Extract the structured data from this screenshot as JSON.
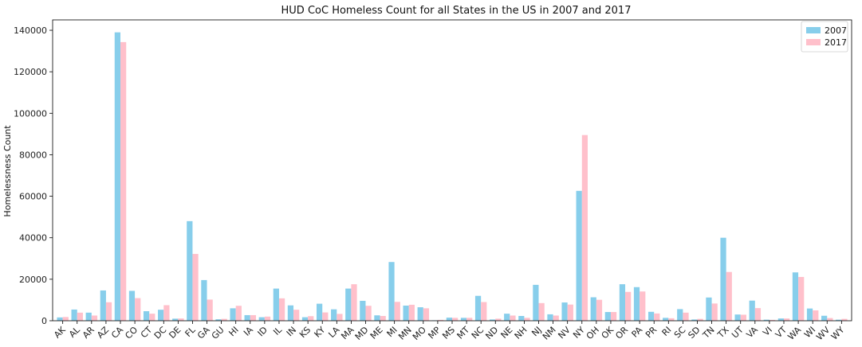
{
  "chart_data": {
    "type": "bar",
    "title": "HUD CoC Homeless Count for all States in the US in 2007 and 2017",
    "xlabel": "",
    "ylabel": "Homelessness Count",
    "ylim": [
      0,
      145000
    ],
    "yticks": [
      0,
      20000,
      40000,
      60000,
      80000,
      100000,
      120000,
      140000
    ],
    "grid": false,
    "legend_position": "top-right",
    "categories": [
      "AK",
      "AL",
      "AR",
      "AZ",
      "CA",
      "CO",
      "CT",
      "DC",
      "DE",
      "FL",
      "GA",
      "GU",
      "HI",
      "IA",
      "ID",
      "IL",
      "IN",
      "KS",
      "KY",
      "LA",
      "MA",
      "MD",
      "ME",
      "MI",
      "MN",
      "MO",
      "MP",
      "MS",
      "MT",
      "NC",
      "ND",
      "NE",
      "NH",
      "NJ",
      "NM",
      "NV",
      "NY",
      "OH",
      "OK",
      "OR",
      "PA",
      "PR",
      "RI",
      "SC",
      "SD",
      "TN",
      "TX",
      "UT",
      "VA",
      "VI",
      "VT",
      "WA",
      "WI",
      "WV",
      "WY"
    ],
    "series": [
      {
        "name": "2007",
        "color": "#87ceeb",
        "values": [
          1600,
          5400,
          3900,
          14600,
          139000,
          14400,
          4600,
          5300,
          1000,
          48000,
          19600,
          700,
          6000,
          2700,
          1700,
          15500,
          7400,
          1700,
          8200,
          5500,
          15500,
          9600,
          2600,
          28300,
          7300,
          6500,
          200,
          1500,
          1400,
          12000,
          600,
          3400,
          2300,
          17300,
          3100,
          8800,
          62600,
          11300,
          4200,
          17600,
          16200,
          4300,
          1400,
          5600,
          600,
          11200,
          40000,
          3000,
          9700,
          500,
          1100,
          23300,
          5900,
          2400,
          500
        ]
      },
      {
        "name": "2017",
        "color": "#ffc0cb",
        "values": [
          1800,
          3900,
          2500,
          8900,
          134300,
          10900,
          3400,
          7500,
          1100,
          32200,
          10200,
          900,
          7200,
          2700,
          2000,
          10800,
          5300,
          2200,
          4000,
          3300,
          17600,
          7200,
          2300,
          9100,
          7700,
          6000,
          400,
          1400,
          1400,
          9000,
          1000,
          2500,
          1400,
          8500,
          2500,
          7800,
          89500,
          10100,
          4200,
          13900,
          14100,
          3500,
          1200,
          3900,
          900,
          8300,
          23500,
          2900,
          6100,
          400,
          1100,
          21100,
          5000,
          1300,
          900
        ]
      }
    ]
  }
}
